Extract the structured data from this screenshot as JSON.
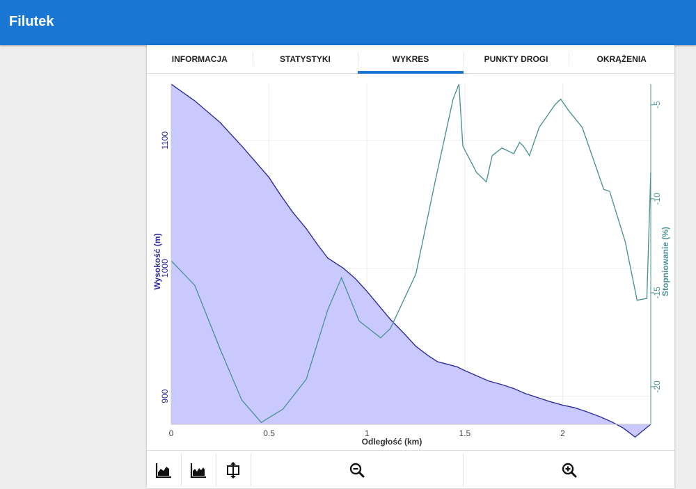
{
  "app": {
    "title": "Filutek"
  },
  "tabs": [
    {
      "label": "INFORMACJA",
      "active": false
    },
    {
      "label": "STATYSTYKI",
      "active": false
    },
    {
      "label": "WYKRES",
      "active": true
    },
    {
      "label": "PUNKTY DROGI",
      "active": false
    },
    {
      "label": "OKRĄŻENIA",
      "active": false
    }
  ],
  "toolbar": {
    "icons": [
      "area-chart-icon",
      "area-chart-alt-icon",
      "fit-vertical-icon",
      "zoom-out-icon",
      "zoom-in-icon"
    ]
  },
  "colors": {
    "primary": "#1976d2",
    "elevation_line": "#2e2e9e",
    "elevation_fill": "#c9c9ff",
    "gradient_line": "#4f9494"
  },
  "chart_data": {
    "type": "area",
    "xlabel": "Odległość (km)",
    "ylabel_left": "Wysokość (m)",
    "ylabel_right": "Stopniowanie (%)",
    "xlim": [
      0,
      2.45
    ],
    "ylim_left": [
      878,
      1144
    ],
    "ylim_right": [
      -22.0,
      -3.9
    ],
    "x_ticks": [
      0,
      0.5,
      1,
      1.5,
      2
    ],
    "x_tick_labels": [
      "0",
      "0.5",
      "1",
      "1.5",
      "2"
    ],
    "y_left_ticks": [
      900,
      1000,
      1100
    ],
    "y_left_tick_labels": [
      "900",
      "1000",
      "1100"
    ],
    "y_right_ticks": [
      -5,
      -10,
      -15,
      -20
    ],
    "y_right_tick_labels": [
      "-5",
      "-10",
      "-15",
      "-20"
    ],
    "grid": true,
    "series": [
      {
        "name": "Wysokość (m)",
        "axis": "left",
        "x": [
          0,
          0.12,
          0.25,
          0.37,
          0.5,
          0.56,
          0.62,
          0.69,
          0.75,
          0.8,
          0.88,
          0.94,
          1.0,
          1.06,
          1.12,
          1.19,
          1.25,
          1.31,
          1.36,
          1.41,
          1.46,
          1.5,
          1.56,
          1.62,
          1.69,
          1.75,
          1.81,
          1.87,
          1.93,
          2.0,
          2.06,
          2.12,
          2.19,
          2.25,
          2.31,
          2.37,
          2.45
        ],
        "y": [
          1144,
          1131,
          1114,
          1094,
          1071,
          1057,
          1044,
          1031,
          1018,
          1008,
          1000,
          992,
          982,
          971,
          960,
          949,
          939,
          932,
          927,
          925,
          923,
          920,
          916,
          912,
          909,
          906,
          902,
          899,
          896,
          893,
          891,
          888,
          884,
          880,
          875,
          868,
          878
        ]
      },
      {
        "name": "Stopniowanie (%)",
        "axis": "right",
        "x": [
          0,
          0.12,
          0.25,
          0.36,
          0.46,
          0.57,
          0.69,
          0.8,
          0.87,
          0.96,
          1.07,
          1.12,
          1.25,
          1.35,
          1.44,
          1.47,
          1.49,
          1.56,
          1.61,
          1.64,
          1.69,
          1.75,
          1.78,
          1.8,
          1.83,
          1.88,
          1.96,
          1.99,
          2.03,
          2.1,
          2.16,
          2.21,
          2.24,
          2.32,
          2.38,
          2.43,
          2.45
        ],
        "y": [
          -13.3,
          -14.6,
          -18.0,
          -20.7,
          -21.9,
          -21.2,
          -19.6,
          -15.9,
          -14.2,
          -16.5,
          -17.4,
          -16.9,
          -14.0,
          -9.0,
          -4.7,
          -3.9,
          -7.2,
          -8.6,
          -9.1,
          -7.7,
          -7.3,
          -7.6,
          -7.0,
          -7.2,
          -7.7,
          -6.2,
          -5.0,
          -4.7,
          -5.3,
          -6.2,
          -8.0,
          -9.5,
          -9.6,
          -12.3,
          -15.4,
          -15.3,
          -8.6
        ]
      }
    ]
  }
}
